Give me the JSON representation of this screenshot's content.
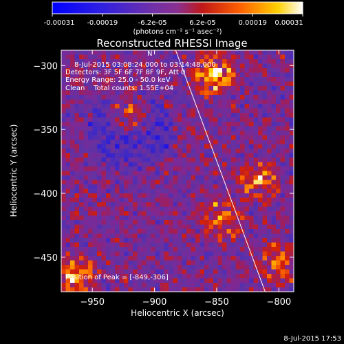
{
  "colorbar": {
    "ticks": [
      "-0.00031",
      "-0.00019",
      "-6.2e-05",
      "6.2e-05",
      "0.00019",
      "0.00031"
    ],
    "unit_label": "(photons cm⁻² s⁻¹ asec⁻²)",
    "range": [
      -0.00031,
      0.00031
    ],
    "colors": [
      "#0000ff",
      "#6a2aa8",
      "#8a3cb0",
      "#c81e1e",
      "#ff6a00",
      "#ffd400",
      "#ffffff"
    ]
  },
  "chart_data": {
    "type": "heatmap",
    "title": "Reconstructed RHESSI Image",
    "xlabel": "Heliocentric X (arcsec)",
    "ylabel": "Heliocentric Y (arcsec)",
    "xlim": [
      -975,
      -788
    ],
    "ylim": [
      -477,
      -288
    ],
    "x_ticks": [
      -950,
      -900,
      -850,
      -800
    ],
    "y_ticks": [
      -300,
      -350,
      -400,
      -450
    ],
    "x_tick_labels": [
      "−950",
      "−900",
      "−850",
      "−800"
    ],
    "y_tick_labels": [
      "−300",
      "−350",
      "−400",
      "−450"
    ],
    "grid": false,
    "limb_line": [
      [
        -883,
        -288
      ],
      [
        -811,
        -477
      ]
    ],
    "bright_sources": [
      {
        "x": -852,
        "y": -306,
        "level": 1.0
      },
      {
        "x": -920,
        "y": -335,
        "level": 0.75
      },
      {
        "x": -815,
        "y": -390,
        "level": 0.72
      },
      {
        "x": -845,
        "y": -420,
        "level": 0.7
      },
      {
        "x": -965,
        "y": -465,
        "level": 0.85
      },
      {
        "x": -800,
        "y": -455,
        "level": 0.6
      }
    ],
    "annotations": [
      "8-Jul-2015 03:08:24.000 to 03:14:48.000",
      "Detectors: 3F 5F 6F 7F 8F 9F, Att 0",
      "Energy Range: 25.0 - 50.0 keV",
      "Clean    Total counts: 1.55E+04",
      "Position of Peak = [-849,-306]"
    ]
  },
  "timestamp": "8-Jul-2015 17:53"
}
